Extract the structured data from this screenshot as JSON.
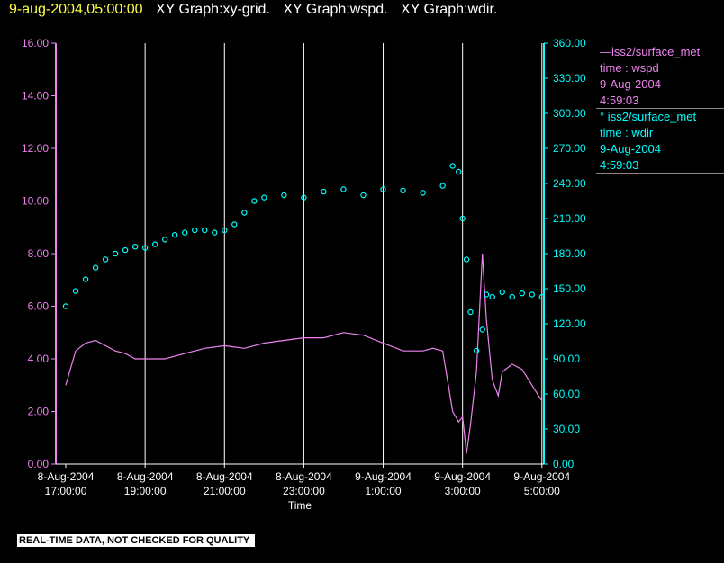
{
  "header": {
    "timestamp": "9-aug-2004,05:00:00",
    "graphs": [
      "XY Graph:xy-grid.",
      "XY Graph:wspd.",
      "XY Graph:wdir."
    ]
  },
  "footer": {
    "quality_note": "REAL-TIME DATA, NOT CHECKED FOR QUALITY"
  },
  "colors": {
    "wspd": "#ee82ee",
    "wdir": "#00ffff",
    "grid": "#ffffff",
    "axis_left": "#ee82ee",
    "axis_right": "#00ffff"
  },
  "legend": [
    {
      "line1": "—iss2/surface_met",
      "line2": "time : wspd",
      "line3": "9-Aug-2004",
      "line4": "4:59:03"
    },
    {
      "line1": "° iss2/surface_met",
      "line2": "time : wdir",
      "line3": "9-Aug-2004",
      "line4": "4:59:03"
    }
  ],
  "chart_data": {
    "type": "line",
    "xlabel": "Time",
    "x_range_hours": [
      16.75,
      29.05
    ],
    "x_ticks": [
      {
        "t": 17,
        "line1": "8-Aug-2004",
        "line2": "17:00:00"
      },
      {
        "t": 19,
        "line1": "8-Aug-2004",
        "line2": "19:00:00"
      },
      {
        "t": 21,
        "line1": "8-Aug-2004",
        "line2": "21:00:00"
      },
      {
        "t": 23,
        "line1": "8-Aug-2004",
        "line2": "23:00:00"
      },
      {
        "t": 25,
        "line1": "9-Aug-2004",
        "line2": "1:00:00"
      },
      {
        "t": 27,
        "line1": "9-Aug-2004",
        "line2": "3:00:00"
      },
      {
        "t": 29,
        "line1": "9-Aug-2004",
        "line2": "5:00:00"
      }
    ],
    "y_left": {
      "range": [
        0,
        16
      ],
      "ticks": [
        "0.00",
        "2.00",
        "4.00",
        "6.00",
        "8.00",
        "10.00",
        "12.00",
        "14.00",
        "16.00"
      ]
    },
    "y_right": {
      "range": [
        0,
        360
      ],
      "ticks": [
        "0.00",
        "30.00",
        "60.00",
        "90.00",
        "120.00",
        "150.00",
        "180.00",
        "210.00",
        "240.00",
        "270.00",
        "300.00",
        "330.00",
        "360.00"
      ]
    },
    "series": [
      {
        "name": "iss2/surface_met time : wspd",
        "axis": "left",
        "style": "line",
        "x": [
          17.0,
          17.25,
          17.5,
          17.75,
          18.0,
          18.25,
          18.5,
          18.75,
          19.0,
          19.5,
          20.0,
          20.5,
          21.0,
          21.5,
          22.0,
          22.5,
          23.0,
          23.5,
          24.0,
          24.5,
          25.0,
          25.5,
          26.0,
          26.25,
          26.5,
          26.75,
          26.9,
          27.0,
          27.1,
          27.2,
          27.35,
          27.5,
          27.6,
          27.75,
          27.9,
          28.0,
          28.25,
          28.5,
          28.75,
          29.0
        ],
        "y": [
          3.0,
          4.3,
          4.6,
          4.7,
          4.5,
          4.3,
          4.2,
          4.0,
          4.0,
          4.0,
          4.2,
          4.4,
          4.5,
          4.4,
          4.6,
          4.7,
          4.8,
          4.8,
          5.0,
          4.9,
          4.6,
          4.3,
          4.3,
          4.4,
          4.3,
          2.0,
          1.6,
          1.8,
          0.4,
          1.5,
          3.5,
          8.0,
          5.5,
          3.2,
          2.6,
          3.5,
          3.8,
          3.6,
          3.0,
          2.4
        ]
      },
      {
        "name": "iss2/surface_met time : wdir",
        "axis": "right",
        "style": "scatter",
        "x": [
          17.0,
          17.25,
          17.5,
          17.75,
          18.0,
          18.25,
          18.5,
          18.75,
          19.0,
          19.25,
          19.5,
          19.75,
          20.0,
          20.25,
          20.5,
          20.75,
          21.0,
          21.25,
          21.5,
          21.75,
          22.0,
          22.5,
          23.0,
          23.5,
          24.0,
          24.5,
          25.0,
          25.5,
          26.0,
          26.5,
          26.75,
          26.9,
          27.0,
          27.1,
          27.2,
          27.35,
          27.5,
          27.6,
          27.75,
          28.0,
          28.25,
          28.5,
          28.75,
          29.0
        ],
        "y": [
          135,
          148,
          158,
          168,
          175,
          180,
          183,
          186,
          185,
          188,
          192,
          196,
          198,
          200,
          200,
          198,
          200,
          205,
          215,
          225,
          228,
          230,
          228,
          233,
          235,
          230,
          235,
          234,
          232,
          238,
          255,
          250,
          210,
          175,
          130,
          97,
          115,
          145,
          143,
          147,
          143,
          146,
          145,
          143
        ]
      }
    ]
  }
}
